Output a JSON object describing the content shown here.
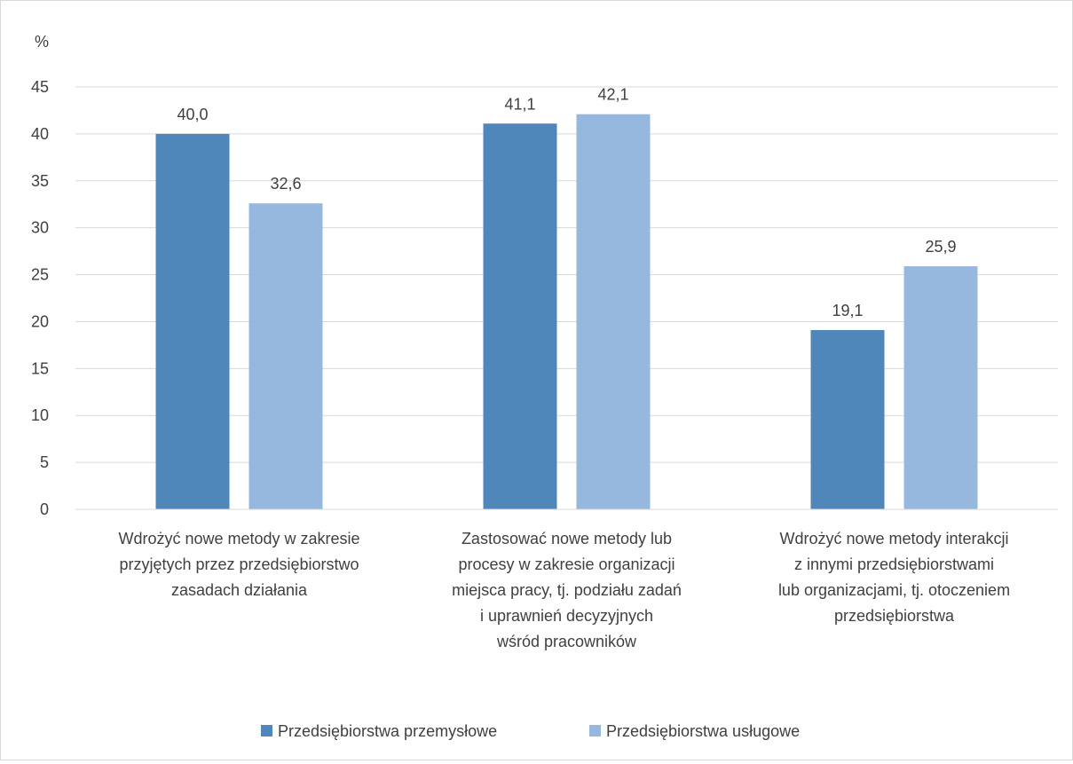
{
  "chart_data": {
    "type": "bar",
    "unit_label": "%",
    "categories": [
      [
        "Wdrożyć nowe metody w zakresie",
        "przyjętych przez przedsiębiorstwo",
        "zasadach działania"
      ],
      [
        "Zastosować nowe metody lub",
        "procesy w zakresie organizacji",
        "miejsca pracy, tj. podziału zadań",
        "i uprawnień decyzyjnych",
        "wśród pracowników"
      ],
      [
        "Wdrożyć nowe metody interakcji",
        "z innymi przedsiębiorstwami",
        "lub organizacjami, tj. otoczeniem",
        "przedsiębiorstwa"
      ]
    ],
    "series": [
      {
        "name": "Przedsiębiorstwa przemysłowe",
        "color": "#4f87bb",
        "values": [
          40.0,
          41.1,
          19.1
        ],
        "labels": [
          "40,0",
          "41,1",
          "19,1"
        ]
      },
      {
        "name": "Przedsiębiorstwa usługowe",
        "color": "#96b8df",
        "values": [
          32.6,
          42.1,
          25.9
        ],
        "labels": [
          "32,6",
          "42,1",
          "25,9"
        ]
      }
    ],
    "ylim": [
      0,
      45
    ],
    "yticks": [
      0,
      5,
      10,
      15,
      20,
      25,
      30,
      35,
      40,
      45
    ],
    "grid": true,
    "legend_position": "bottom"
  }
}
